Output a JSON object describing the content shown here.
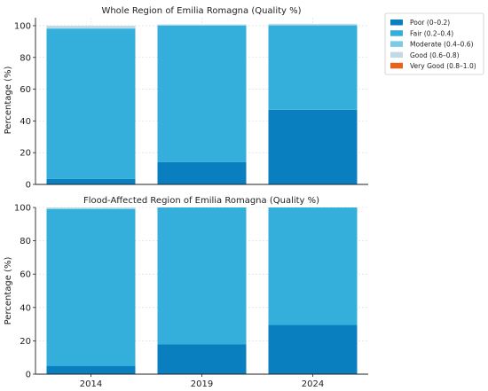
{
  "chart_data": [
    {
      "type": "bar",
      "stacked": true,
      "title": "Whole Region of Emilia Romagna (Quality %)",
      "ylabel": "Percentage (%)",
      "ylim": [
        0,
        105
      ],
      "yticks": [
        0,
        20,
        40,
        60,
        80,
        100
      ],
      "categories": [
        "2014",
        "2019",
        "2024"
      ],
      "grid": true,
      "series": [
        {
          "name": "Poor (0–0.2)",
          "color": "#0a7fbf",
          "values": [
            3.5,
            14.0,
            47.0
          ]
        },
        {
          "name": "Fair (0.2–0.4)",
          "color": "#34afdc",
          "values": [
            94.5,
            86.0,
            53.0
          ]
        },
        {
          "name": "Moderate (0.4–0.6)",
          "color": "#7ccbe6",
          "values": [
            0.5,
            0.3,
            0.5
          ]
        },
        {
          "name": "Good (0.6–0.8)",
          "color": "#c2d9e6",
          "values": [
            1.5,
            0.5,
            0.7
          ]
        },
        {
          "name": "Very Good (0.8–1.0)",
          "color": "#e8601c",
          "values": [
            0,
            0,
            0
          ]
        }
      ]
    },
    {
      "type": "bar",
      "stacked": true,
      "title": "Flood-Affected Region of Emilia Romagna (Quality %)",
      "ylabel": "Percentage (%)",
      "ylim": [
        0,
        100
      ],
      "yticks": [
        0,
        20,
        40,
        60,
        80,
        100
      ],
      "categories": [
        "2014",
        "2019",
        "2024"
      ],
      "grid": true,
      "series": [
        {
          "name": "Poor (0–0.2)",
          "color": "#0a7fbf",
          "values": [
            5.0,
            18.0,
            29.5
          ]
        },
        {
          "name": "Fair (0.2–0.4)",
          "color": "#34afdc",
          "values": [
            94.0,
            82.0,
            70.5
          ]
        },
        {
          "name": "Moderate (0.4–0.6)",
          "color": "#7ccbe6",
          "values": [
            0.4,
            0,
            0
          ]
        },
        {
          "name": "Good (0.6–0.8)",
          "color": "#c2d9e6",
          "values": [
            0.6,
            0,
            0
          ]
        },
        {
          "name": "Very Good (0.8–1.0)",
          "color": "#e8601c",
          "values": [
            0,
            0,
            0
          ]
        }
      ]
    }
  ],
  "legend": {
    "placement": "top-right outside",
    "items": [
      {
        "label": "Poor (0–0.2)",
        "color": "#0a7fbf"
      },
      {
        "label": "Fair (0.2–0.4)",
        "color": "#34afdc"
      },
      {
        "label": "Moderate (0.4–0.6)",
        "color": "#7ccbe6"
      },
      {
        "label": "Good (0.6–0.8)",
        "color": "#c2d9e6"
      },
      {
        "label": "Very Good (0.8–1.0)",
        "color": "#e8601c"
      }
    ]
  }
}
